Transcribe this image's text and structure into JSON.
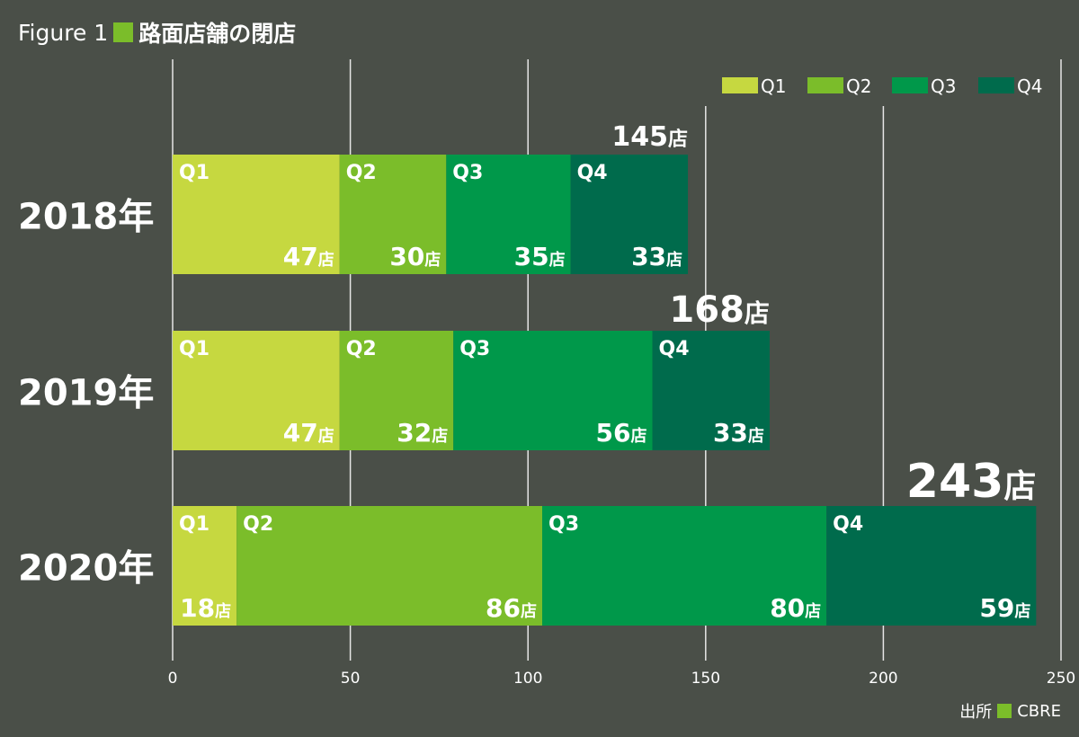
{
  "figure": {
    "prefix": "Figure 1",
    "title": "路面店舗の閉店",
    "accent_color": "#7bbd2a"
  },
  "source": {
    "label": "出所",
    "name": "CBRE"
  },
  "unit": "店",
  "colors": {
    "Q1": "#c6d840",
    "Q2": "#7bbd2a",
    "Q3": "#00984a",
    "Q4": "#006b4c",
    "gridline": "#e6e6e6"
  },
  "chart_data": {
    "type": "bar",
    "orientation": "horizontal",
    "stacked": true,
    "title": "路面店舗の閉店",
    "categories": [
      "2018年",
      "2019年",
      "2020年"
    ],
    "series": [
      {
        "name": "Q1",
        "values": [
          47,
          47,
          18
        ]
      },
      {
        "name": "Q2",
        "values": [
          30,
          32,
          86
        ]
      },
      {
        "name": "Q3",
        "values": [
          35,
          56,
          80
        ]
      },
      {
        "name": "Q4",
        "values": [
          33,
          33,
          59
        ]
      }
    ],
    "totals": [
      145,
      168,
      243
    ],
    "xlim": [
      0,
      250
    ],
    "xticks": [
      0,
      50,
      100,
      150,
      200,
      250
    ],
    "xlabel": "",
    "ylabel": "",
    "grid": true,
    "legend": "top-right"
  }
}
